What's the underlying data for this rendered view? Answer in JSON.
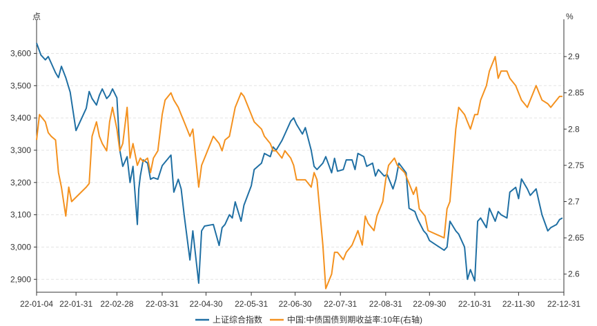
{
  "chart_data": {
    "type": "line",
    "y_left_unit": "点",
    "y_right_unit": "%",
    "y_left_ticks": [
      "2,900",
      "3,000",
      "3,100",
      "3,200",
      "3,300",
      "3,400",
      "3,500",
      "3,600"
    ],
    "y_right_ticks": [
      "2.6",
      "2.65",
      "2.7",
      "2.75",
      "2.8",
      "2.85",
      "2.9"
    ],
    "x_ticks": [
      "22-01-04",
      "22-01-31",
      "22-02-28",
      "22-03-31",
      "22-04-30",
      "22-05-31",
      "22-06-30",
      "22-07-31",
      "22-08-31",
      "22-09-30",
      "22-10-31",
      "22-11-30",
      "22-12-31"
    ],
    "ylim_left": [
      2860,
      3680
    ],
    "ylim_right": [
      2.575,
      2.94
    ],
    "grid": true,
    "legend_position": "bottom",
    "colors": {
      "left_series": "#1f6fa3",
      "right_series": "#f4911e"
    },
    "series": [
      {
        "name": "上证综合指数",
        "axis": "left",
        "x": [
          "22-01-04",
          "22-01-07",
          "22-01-10",
          "22-01-12",
          "22-01-14",
          "22-01-17",
          "22-01-19",
          "22-01-21",
          "22-01-24",
          "22-01-27",
          "22-01-28",
          "22-01-31",
          "22-02-07",
          "22-02-09",
          "22-02-11",
          "22-02-14",
          "22-02-16",
          "22-02-18",
          "22-02-21",
          "22-02-23",
          "22-02-25",
          "22-02-28",
          "22-03-02",
          "22-03-04",
          "22-03-07",
          "22-03-09",
          "22-03-11",
          "22-03-14",
          "22-03-15",
          "22-03-16",
          "22-03-18",
          "22-03-21",
          "22-03-23",
          "22-03-25",
          "22-03-28",
          "22-03-31",
          "22-04-06",
          "22-04-08",
          "22-04-11",
          "22-04-13",
          "22-04-15",
          "22-04-19",
          "22-04-21",
          "22-04-25",
          "22-04-27",
          "22-04-29",
          "22-05-05",
          "22-05-09",
          "22-05-11",
          "22-05-13",
          "22-05-16",
          "22-05-18",
          "22-05-20",
          "22-05-24",
          "22-05-26",
          "22-05-31",
          "22-06-02",
          "22-06-07",
          "22-06-09",
          "22-06-13",
          "22-06-15",
          "22-06-17",
          "22-06-21",
          "22-06-23",
          "22-06-27",
          "22-06-29",
          "22-07-01",
          "22-07-05",
          "22-07-07",
          "22-07-11",
          "22-07-13",
          "22-07-15",
          "22-07-19",
          "22-07-21",
          "22-07-25",
          "22-07-27",
          "22-07-29",
          "22-08-02",
          "22-08-04",
          "22-08-08",
          "22-08-10",
          "22-08-12",
          "22-08-16",
          "22-08-18",
          "22-08-22",
          "22-08-24",
          "22-08-26",
          "22-08-30",
          "22-09-01",
          "22-09-05",
          "22-09-07",
          "22-09-09",
          "22-09-14",
          "22-09-16",
          "22-09-20",
          "22-09-22",
          "22-09-26",
          "22-09-28",
          "22-09-30",
          "22-10-10",
          "22-10-12",
          "22-10-14",
          "22-10-18",
          "22-10-20",
          "22-10-24",
          "22-10-26",
          "22-10-28",
          "22-10-31",
          "22-11-02",
          "22-11-04",
          "22-11-08",
          "22-11-10",
          "22-11-14",
          "22-11-16",
          "22-11-18",
          "22-11-22",
          "22-11-24",
          "22-11-28",
          "22-11-30",
          "22-12-02",
          "22-12-06",
          "22-12-08",
          "22-12-12",
          "22-12-14",
          "22-12-16",
          "22-12-20",
          "22-12-22",
          "22-12-26",
          "22-12-28",
          "22-12-30"
        ],
        "values": [
          3632,
          3595,
          3580,
          3590,
          3570,
          3540,
          3525,
          3560,
          3525,
          3480,
          3450,
          3361,
          3430,
          3482,
          3460,
          3440,
          3470,
          3490,
          3460,
          3470,
          3490,
          3462,
          3300,
          3250,
          3280,
          3200,
          3250,
          3070,
          3180,
          3220,
          3270,
          3260,
          3210,
          3215,
          3210,
          3252,
          3285,
          3170,
          3210,
          3180,
          3100,
          2960,
          3050,
          2888,
          3050,
          3065,
          3070,
          3005,
          3060,
          3070,
          3100,
          3090,
          3140,
          3080,
          3130,
          3190,
          3240,
          3260,
          3290,
          3280,
          3310,
          3300,
          3330,
          3350,
          3390,
          3400,
          3380,
          3350,
          3370,
          3300,
          3250,
          3240,
          3260,
          3280,
          3230,
          3275,
          3235,
          3240,
          3270,
          3270,
          3240,
          3290,
          3280,
          3250,
          3260,
          3220,
          3240,
          3220,
          3225,
          3180,
          3210,
          3260,
          3230,
          3120,
          3110,
          3085,
          3050,
          3040,
          3020,
          2990,
          3000,
          3080,
          3050,
          3040,
          3000,
          2900,
          2930,
          2895,
          3080,
          3090,
          3060,
          3120,
          3080,
          3110,
          3100,
          3090,
          3170,
          3185,
          3150,
          3211,
          3180,
          3160,
          3180,
          3140,
          3100,
          3050,
          3060,
          3070,
          3085,
          3090
        ]
      },
      {
        "name": "中国:中债国债到期收益率:10年(右轴)",
        "axis": "right",
        "x": [
          "22-01-04",
          "22-01-06",
          "22-01-10",
          "22-01-12",
          "22-01-14",
          "22-01-17",
          "22-01-19",
          "22-01-21",
          "22-01-24",
          "22-01-26",
          "22-01-28",
          "22-02-07",
          "22-02-09",
          "22-02-11",
          "22-02-14",
          "22-02-16",
          "22-02-18",
          "22-02-21",
          "22-02-23",
          "22-02-25",
          "22-02-28",
          "22-03-02",
          "22-03-04",
          "22-03-07",
          "22-03-09",
          "22-03-11",
          "22-03-14",
          "22-03-16",
          "22-03-18",
          "22-03-21",
          "22-03-23",
          "22-03-25",
          "22-03-28",
          "22-03-31",
          "22-04-02",
          "22-04-06",
          "22-04-08",
          "22-04-11",
          "22-04-13",
          "22-04-15",
          "22-04-19",
          "22-04-21",
          "22-04-25",
          "22-04-27",
          "22-04-29",
          "22-05-05",
          "22-05-09",
          "22-05-11",
          "22-05-13",
          "22-05-16",
          "22-05-18",
          "22-05-20",
          "22-05-24",
          "22-05-26",
          "22-05-31",
          "22-06-02",
          "22-06-07",
          "22-06-09",
          "22-06-13",
          "22-06-15",
          "22-06-17",
          "22-06-21",
          "22-06-23",
          "22-06-27",
          "22-06-29",
          "22-07-01",
          "22-07-05",
          "22-07-07",
          "22-07-11",
          "22-07-13",
          "22-07-15",
          "22-07-19",
          "22-07-21",
          "22-07-25",
          "22-07-27",
          "22-07-29",
          "22-08-02",
          "22-08-04",
          "22-08-08",
          "22-08-10",
          "22-08-12",
          "22-08-15",
          "22-08-17",
          "22-08-19",
          "22-08-23",
          "22-08-25",
          "22-08-29",
          "22-08-31",
          "22-09-02",
          "22-09-06",
          "22-09-08",
          "22-09-13",
          "22-09-15",
          "22-09-19",
          "22-09-21",
          "22-09-23",
          "22-09-27",
          "22-09-29",
          "22-10-10",
          "22-10-12",
          "22-10-14",
          "22-10-18",
          "22-10-20",
          "22-10-24",
          "22-10-26",
          "22-10-28",
          "22-10-31",
          "22-11-02",
          "22-11-04",
          "22-11-08",
          "22-11-10",
          "22-11-14",
          "22-11-16",
          "22-11-18",
          "22-11-22",
          "22-11-24",
          "22-11-28",
          "22-11-30",
          "22-12-02",
          "22-12-06",
          "22-12-08",
          "22-12-12",
          "22-12-14",
          "22-12-16",
          "22-12-20",
          "22-12-22",
          "22-12-26",
          "22-12-28",
          "22-12-30"
        ],
        "values": [
          2.785,
          2.82,
          2.81,
          2.795,
          2.79,
          2.785,
          2.74,
          2.72,
          2.68,
          2.72,
          2.7,
          2.72,
          2.725,
          2.79,
          2.81,
          2.79,
          2.78,
          2.77,
          2.81,
          2.83,
          2.8,
          2.77,
          2.78,
          2.83,
          2.76,
          2.78,
          2.75,
          2.76,
          2.755,
          2.76,
          2.74,
          2.76,
          2.77,
          2.82,
          2.84,
          2.85,
          2.84,
          2.83,
          2.82,
          2.81,
          2.79,
          2.8,
          2.72,
          2.75,
          2.76,
          2.79,
          2.78,
          2.77,
          2.785,
          2.79,
          2.81,
          2.83,
          2.85,
          2.845,
          2.82,
          2.81,
          2.8,
          2.79,
          2.78,
          2.77,
          2.77,
          2.76,
          2.77,
          2.76,
          2.75,
          2.73,
          2.73,
          2.73,
          2.72,
          2.74,
          2.73,
          2.64,
          2.58,
          2.6,
          2.63,
          2.63,
          2.62,
          2.63,
          2.64,
          2.65,
          2.66,
          2.64,
          2.68,
          2.67,
          2.66,
          2.68,
          2.7,
          2.73,
          2.75,
          2.76,
          2.75,
          2.74,
          2.73,
          2.71,
          2.72,
          2.69,
          2.68,
          2.66,
          2.65,
          2.69,
          2.7,
          2.8,
          2.83,
          2.82,
          2.81,
          2.8,
          2.82,
          2.82,
          2.84,
          2.86,
          2.88,
          2.9,
          2.87,
          2.88,
          2.88,
          2.87,
          2.86,
          2.85,
          2.84,
          2.83,
          2.84,
          2.86,
          2.85,
          2.84,
          2.835,
          2.83,
          2.84,
          2.845,
          2.845
        ]
      }
    ]
  }
}
